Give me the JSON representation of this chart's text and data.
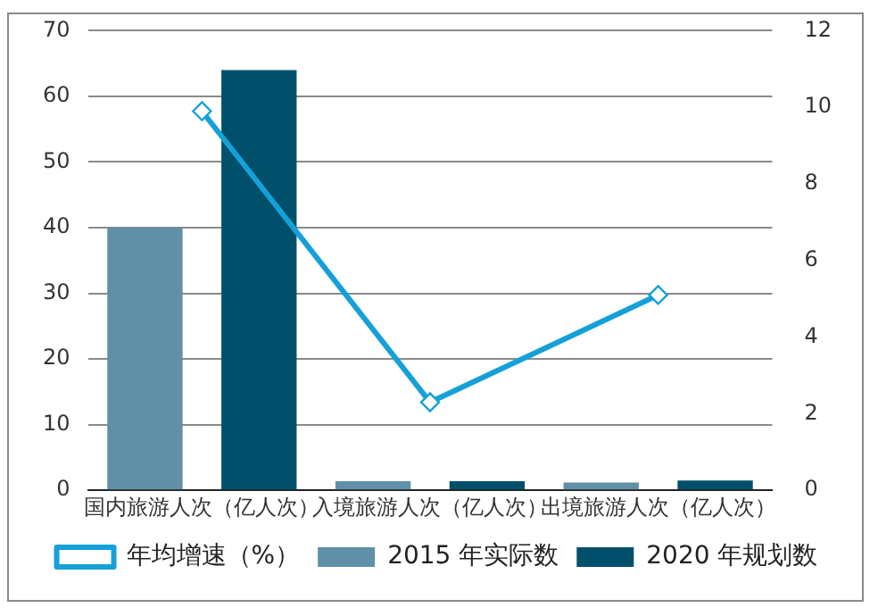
{
  "chart_data": {
    "type": "bar",
    "categories": [
      "国内旅游人次（亿人次）",
      "入境旅游人次（亿人次）",
      "出境旅游人次（亿人次）"
    ],
    "series": [
      {
        "name": "2015 年实际数",
        "color": "#5f90a8",
        "values": [
          40,
          1.4,
          1.2
        ]
      },
      {
        "name": "2020 年规划数",
        "color": "#00506b",
        "values": [
          64,
          1.4,
          1.5
        ]
      },
      {
        "name": "年均增速（%）",
        "type": "line",
        "axis": "y2",
        "color": "#15a0d8",
        "values": [
          9.9,
          2.3,
          5.1
        ]
      }
    ],
    "ylim": [
      0,
      70
    ],
    "yticks": [
      0,
      10,
      20,
      30,
      40,
      50,
      60,
      70
    ],
    "y2lim": [
      0,
      12
    ],
    "y2ticks": [
      0,
      2,
      4,
      6,
      8,
      10,
      12
    ],
    "grid": "y",
    "legend": "bottom",
    "marker": "diamond"
  }
}
